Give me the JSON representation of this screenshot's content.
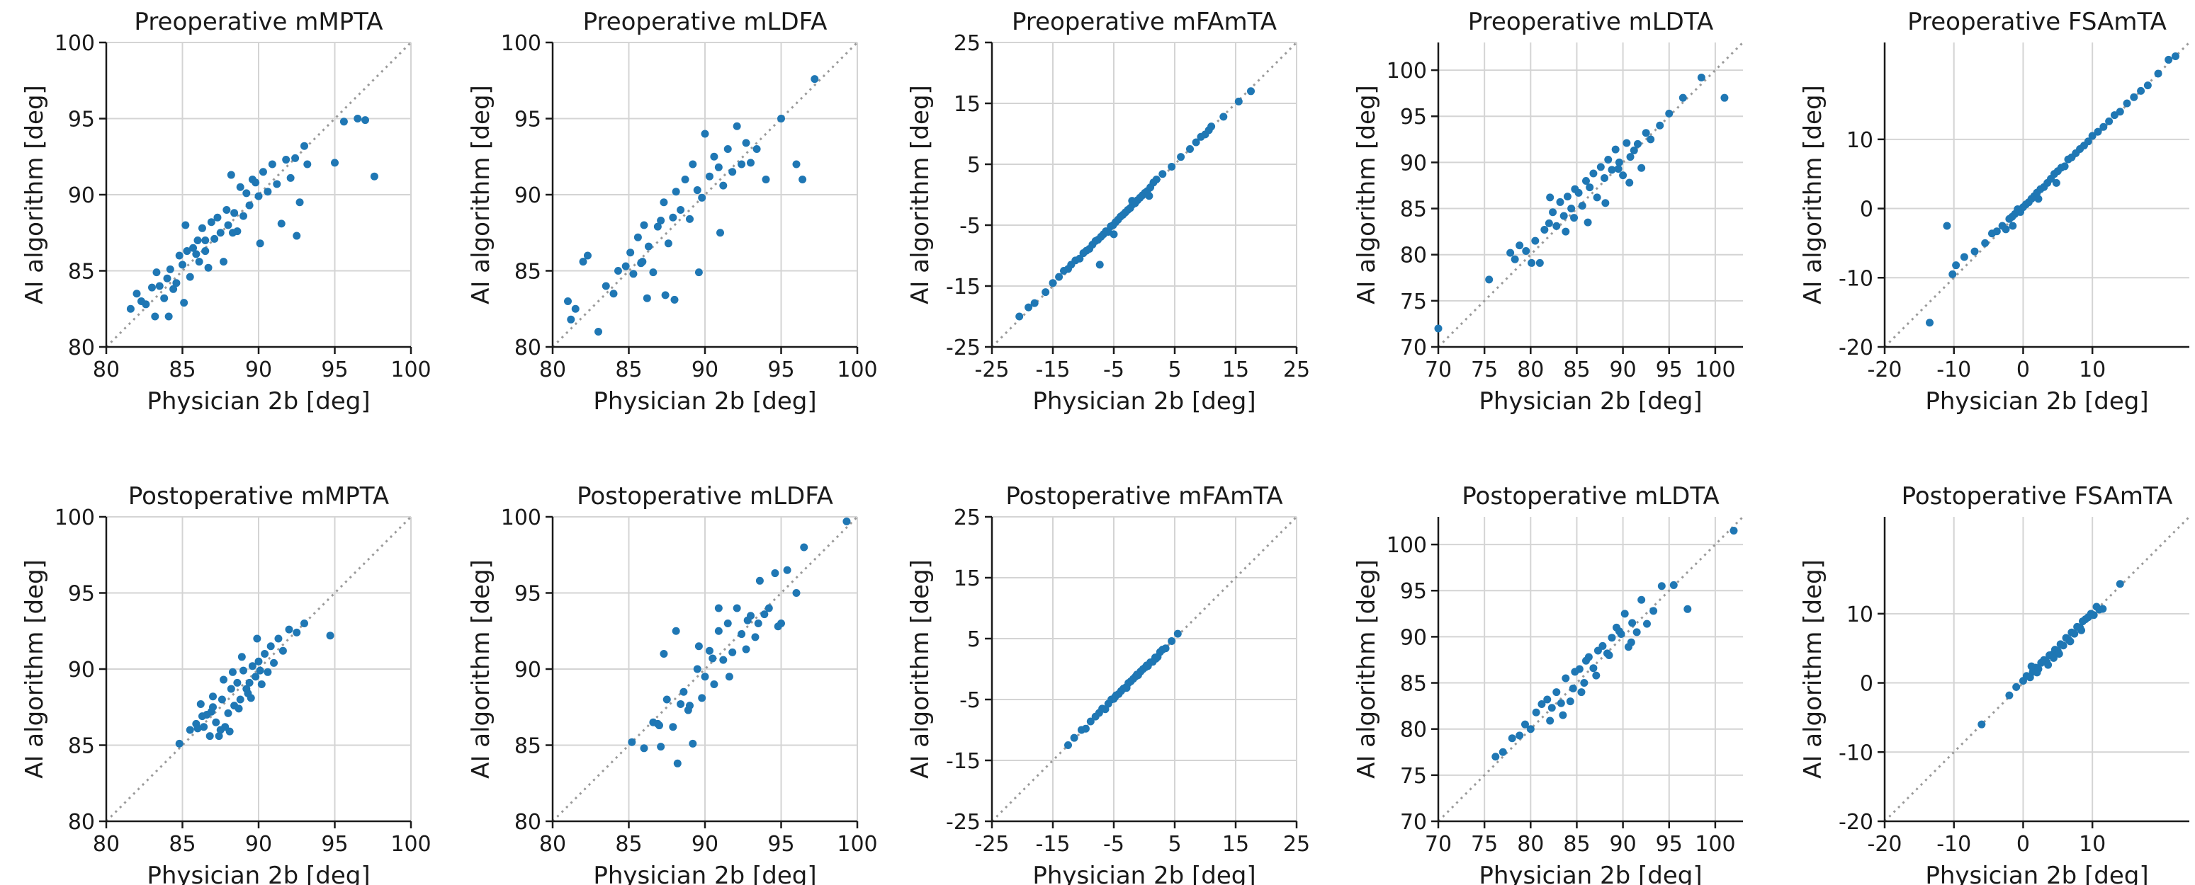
{
  "figure": {
    "x_axis_label": "Physician 2b [deg]",
    "y_axis_label": "AI algorithm [deg]",
    "marker_color": "#1f77b4",
    "reference_line": "identity (dotted)"
  },
  "chart_data": [
    {
      "type": "scatter",
      "title": "Preoperative mMPTA",
      "xlabel": "Physician 2b [deg]",
      "ylabel": "AI algorithm [deg]",
      "xlim": [
        80,
        100
      ],
      "ylim": [
        80,
        100
      ],
      "xticks": [
        80,
        85,
        90,
        95,
        100
      ],
      "yticks": [
        80,
        85,
        90,
        95,
        100
      ],
      "grid": true,
      "x": [
        81.6,
        82.0,
        82.3,
        82.6,
        83.0,
        83.2,
        83.5,
        83.8,
        84.0,
        84.2,
        84.4,
        84.6,
        84.8,
        85.0,
        85.1,
        85.3,
        85.5,
        85.7,
        85.9,
        86.0,
        86.1,
        86.3,
        86.5,
        86.7,
        86.9,
        87.1,
        87.3,
        87.5,
        87.7,
        87.9,
        88.0,
        88.2,
        88.4,
        88.6,
        88.8,
        89.0,
        89.2,
        89.4,
        89.6,
        89.8,
        90.0,
        90.3,
        90.6,
        90.9,
        91.2,
        91.5,
        91.8,
        92.1,
        92.4,
        92.7,
        93.0,
        93.2,
        95.0,
        95.6,
        96.5,
        97.0,
        97.6,
        85.2,
        86.5,
        90.1,
        92.5,
        88.3,
        84.1,
        83.3
      ],
      "y": [
        82.5,
        83.5,
        83.0,
        82.8,
        83.9,
        82.0,
        84.0,
        83.2,
        84.5,
        85.1,
        83.8,
        84.2,
        86.0,
        85.4,
        82.9,
        86.3,
        84.6,
        86.5,
        86.1,
        87.0,
        85.6,
        87.8,
        86.3,
        85.2,
        88.2,
        87.1,
        88.5,
        87.5,
        85.6,
        89.0,
        88.0,
        91.3,
        88.8,
        87.6,
        90.5,
        88.6,
        90.1,
        89.3,
        91.0,
        90.8,
        89.9,
        91.5,
        90.2,
        92.0,
        90.7,
        88.1,
        92.3,
        91.1,
        92.4,
        89.5,
        93.2,
        92.0,
        92.1,
        94.8,
        95.0,
        94.9,
        91.2,
        88.0,
        87.0,
        86.8,
        87.3,
        87.5,
        82.0,
        84.9
      ]
    },
    {
      "type": "scatter",
      "title": "Preoperative mLDFA",
      "xlabel": "Physician 2b [deg]",
      "ylabel": "AI algorithm [deg]",
      "xlim": [
        80,
        100
      ],
      "ylim": [
        80,
        100
      ],
      "xticks": [
        80,
        85,
        90,
        95,
        100
      ],
      "yticks": [
        80,
        85,
        90,
        95,
        100
      ],
      "grid": true,
      "x": [
        81.0,
        81.2,
        81.5,
        82.0,
        82.3,
        83.0,
        83.5,
        84.0,
        84.3,
        84.8,
        85.1,
        85.3,
        85.6,
        85.8,
        86.0,
        86.3,
        86.6,
        86.9,
        87.1,
        87.3,
        87.6,
        87.9,
        88.1,
        88.4,
        88.7,
        89.0,
        89.2,
        89.5,
        89.8,
        90.0,
        90.3,
        90.6,
        90.9,
        91.2,
        91.5,
        91.8,
        92.1,
        92.4,
        92.7,
        93.0,
        93.4,
        94.0,
        95.0,
        96.0,
        96.4,
        97.2,
        86.2,
        88.0,
        89.6,
        91.0,
        87.4,
        85.9
      ],
      "y": [
        83.0,
        81.8,
        82.5,
        85.6,
        86.0,
        81.0,
        84.0,
        83.5,
        85.0,
        85.3,
        86.2,
        84.8,
        87.2,
        85.5,
        88.0,
        86.6,
        84.9,
        87.9,
        88.3,
        89.5,
        86.8,
        88.5,
        90.2,
        89.0,
        91.0,
        88.4,
        92.0,
        90.3,
        89.8,
        94.0,
        91.2,
        92.5,
        91.8,
        90.6,
        93.0,
        91.5,
        94.5,
        92.0,
        93.4,
        92.1,
        93.0,
        91.0,
        95.0,
        92.0,
        91.0,
        97.6,
        83.2,
        83.1,
        84.9,
        87.5,
        83.4,
        85.6
      ]
    },
    {
      "type": "scatter",
      "title": "Preoperative mFAmTA",
      "xlabel": "Physician 2b [deg]",
      "ylabel": "AI algorithm [deg]",
      "xlim": [
        -25,
        25
      ],
      "ylim": [
        -25,
        25
      ],
      "xticks": [
        -25,
        -15,
        -5,
        5,
        15,
        25
      ],
      "yticks": [
        -25,
        -15,
        -5,
        5,
        15,
        25
      ],
      "grid": true,
      "x": [
        -20.5,
        -19.0,
        -18.0,
        -16.2,
        -15.0,
        -14.0,
        -13.2,
        -12.5,
        -12.0,
        -11.3,
        -10.6,
        -10.0,
        -9.5,
        -9.0,
        -8.5,
        -8.0,
        -7.6,
        -7.1,
        -6.7,
        -6.3,
        -5.9,
        -5.5,
        -5.1,
        -4.7,
        -4.3,
        -3.9,
        -3.5,
        -3.1,
        -2.7,
        -2.3,
        -1.9,
        -1.5,
        -1.1,
        -0.7,
        -0.3,
        0.1,
        0.5,
        1.0,
        1.5,
        2.0,
        3.0,
        4.5,
        6.0,
        7.5,
        8.5,
        9.3,
        10.0,
        10.6,
        11.0,
        13.0,
        15.5,
        17.5,
        -7.3,
        -5.0,
        -2.0,
        0.8
      ],
      "y": [
        -20.0,
        -18.5,
        -17.8,
        -16.0,
        -14.5,
        -13.5,
        -12.5,
        -12.2,
        -11.5,
        -10.8,
        -10.5,
        -9.6,
        -9.2,
        -8.9,
        -8.2,
        -7.6,
        -7.4,
        -6.9,
        -6.5,
        -6.0,
        -6.1,
        -5.2,
        -5.0,
        -4.5,
        -4.1,
        -3.6,
        -3.3,
        -2.9,
        -2.5,
        -2.2,
        -1.6,
        -1.4,
        -0.9,
        -0.5,
        -0.1,
        0.3,
        0.6,
        1.2,
        2.0,
        2.5,
        3.4,
        4.6,
        6.2,
        7.5,
        8.6,
        9.5,
        9.9,
        10.6,
        11.2,
        12.8,
        15.3,
        17.0,
        -11.5,
        -6.5,
        -1.0,
        -0.2
      ]
    },
    {
      "type": "scatter",
      "title": "Preoperative mLDTA",
      "xlabel": "Physician 2b [deg]",
      "ylabel": "AI algorithm [deg]",
      "xlim": [
        70,
        103
      ],
      "ylim": [
        70,
        103
      ],
      "xticks": [
        70,
        75,
        80,
        85,
        90,
        95,
        100
      ],
      "yticks": [
        70,
        75,
        80,
        85,
        90,
        95,
        100
      ],
      "grid": true,
      "x": [
        70.0,
        75.5,
        77.8,
        78.3,
        78.8,
        79.5,
        80.1,
        80.5,
        81.0,
        81.5,
        82.0,
        82.4,
        82.8,
        83.2,
        83.6,
        84.0,
        84.4,
        84.8,
        85.2,
        85.6,
        86.0,
        86.4,
        86.8,
        87.2,
        87.6,
        88.0,
        88.4,
        88.8,
        89.2,
        89.6,
        90.0,
        90.4,
        90.8,
        91.2,
        91.6,
        92.0,
        92.5,
        93.0,
        94.0,
        95.0,
        96.5,
        98.5,
        101.0,
        84.7,
        86.2,
        88.1,
        89.5,
        90.7,
        82.1,
        83.8
      ],
      "y": [
        72.0,
        77.3,
        80.2,
        79.5,
        81.0,
        80.4,
        79.1,
        81.5,
        79.1,
        82.7,
        83.4,
        84.6,
        83.1,
        85.7,
        84.2,
        86.3,
        85.0,
        87.1,
        86.7,
        85.3,
        88.0,
        87.3,
        88.8,
        86.2,
        89.5,
        88.3,
        90.3,
        89.2,
        91.4,
        90.0,
        88.6,
        92.1,
        90.6,
        91.3,
        92.0,
        89.4,
        93.2,
        92.5,
        94.0,
        95.3,
        97.0,
        99.2,
        97.0,
        84.0,
        83.5,
        85.6,
        89.3,
        87.8,
        86.2,
        82.5
      ]
    },
    {
      "type": "scatter",
      "title": "Preoperative FSAmTA",
      "xlabel": "Physician 2b [deg]",
      "ylabel": "AI algorithm [deg]",
      "xlim": [
        -20,
        24
      ],
      "ylim": [
        -20,
        24
      ],
      "xticks": [
        -20,
        -10,
        0,
        10
      ],
      "yticks": [
        -20,
        -10,
        0,
        10
      ],
      "grid": true,
      "x": [
        -13.5,
        -11.0,
        -10.2,
        -9.7,
        -8.5,
        -7.0,
        -5.5,
        -4.5,
        -3.8,
        -3.0,
        -2.5,
        -2.0,
        -1.6,
        -1.2,
        -0.8,
        -0.4,
        0.0,
        0.4,
        0.8,
        1.2,
        1.6,
        2.0,
        2.5,
        3.0,
        3.5,
        4.0,
        4.5,
        5.0,
        5.5,
        6.0,
        6.5,
        7.0,
        7.6,
        8.2,
        8.8,
        9.4,
        10.0,
        10.8,
        11.6,
        12.4,
        13.2,
        14.0,
        15.0,
        16.0,
        17.0,
        18.0,
        19.5,
        21.0,
        22.0,
        -1.5,
        2.2,
        4.8
      ],
      "y": [
        -16.5,
        -2.5,
        -9.5,
        -8.2,
        -7.0,
        -6.2,
        -5.0,
        -3.6,
        -3.3,
        -2.5,
        -3.0,
        -1.5,
        -1.2,
        -0.8,
        -0.1,
        -0.5,
        0.2,
        0.6,
        0.9,
        1.4,
        1.8,
        2.3,
        2.8,
        3.1,
        3.7,
        4.3,
        5.0,
        5.4,
        5.9,
        6.1,
        7.1,
        7.4,
        8.0,
        8.6,
        9.1,
        9.7,
        10.5,
        11.1,
        11.8,
        12.6,
        13.5,
        14.0,
        15.2,
        16.1,
        17.0,
        17.8,
        19.5,
        21.5,
        22.0,
        -2.5,
        1.4,
        3.7
      ]
    },
    {
      "type": "scatter",
      "title": "Postoperative mMPTA",
      "xlabel": "Physician 2b [deg]",
      "ylabel": "AI algorithm [deg]",
      "xlim": [
        80,
        100
      ],
      "ylim": [
        80,
        100
      ],
      "xticks": [
        80,
        85,
        90,
        95,
        100
      ],
      "yticks": [
        80,
        85,
        90,
        95,
        100
      ],
      "grid": true,
      "x": [
        84.8,
        85.5,
        85.9,
        86.2,
        86.4,
        86.6,
        86.8,
        87.0,
        87.2,
        87.4,
        87.6,
        87.8,
        88.0,
        88.2,
        88.4,
        88.6,
        88.8,
        89.0,
        89.2,
        89.4,
        89.6,
        89.8,
        90.0,
        90.2,
        90.4,
        90.6,
        90.8,
        91.0,
        91.3,
        91.6,
        92.0,
        92.5,
        93.0,
        94.7,
        86.3,
        86.9,
        87.5,
        88.1,
        88.7,
        89.3,
        89.9,
        87.7,
        88.3,
        86.0,
        87.0,
        88.9,
        90.1,
        89.5
      ],
      "y": [
        85.1,
        86.0,
        86.4,
        87.7,
        86.2,
        87.0,
        85.6,
        87.5,
        86.5,
        85.6,
        88.0,
        86.2,
        87.1,
        88.7,
        87.6,
        89.1,
        88.0,
        89.9,
        88.7,
        89.1,
        90.2,
        89.5,
        90.5,
        89.0,
        91.0,
        89.8,
        91.5,
        90.4,
        92.0,
        91.2,
        92.6,
        92.4,
        93.0,
        92.2,
        86.9,
        87.2,
        86.0,
        85.9,
        87.4,
        88.4,
        92.0,
        89.3,
        89.8,
        86.1,
        88.2,
        90.8,
        89.9,
        88.1
      ]
    },
    {
      "type": "scatter",
      "title": "Postoperative mLDFA",
      "xlabel": "Physician 2b [deg]",
      "ylabel": "AI algorithm [deg]",
      "xlim": [
        80,
        100
      ],
      "ylim": [
        80,
        100
      ],
      "xticks": [
        80,
        85,
        90,
        95,
        100
      ],
      "yticks": [
        80,
        85,
        90,
        95,
        100
      ],
      "grid": true,
      "x": [
        85.2,
        86.0,
        86.6,
        87.1,
        87.5,
        87.9,
        88.2,
        88.6,
        88.9,
        89.2,
        89.5,
        89.8,
        90.0,
        90.3,
        90.6,
        90.9,
        91.2,
        91.5,
        91.8,
        92.1,
        92.4,
        92.7,
        93.0,
        93.3,
        93.6,
        93.9,
        94.2,
        94.6,
        95.0,
        95.4,
        96.0,
        96.5,
        99.3,
        87.3,
        88.1,
        89.0,
        90.5,
        91.6,
        92.8,
        88.4,
        86.9,
        89.6,
        90.9,
        93.5,
        94.8,
        87.0
      ],
      "y": [
        85.2,
        84.8,
        86.5,
        84.9,
        88.0,
        86.2,
        83.8,
        88.5,
        87.3,
        85.1,
        90.0,
        88.1,
        89.5,
        91.2,
        89.0,
        92.5,
        90.6,
        93.0,
        91.1,
        94.0,
        92.3,
        91.3,
        93.5,
        92.1,
        95.8,
        93.6,
        94.0,
        96.3,
        93.0,
        96.5,
        95.0,
        98.0,
        99.7,
        91.0,
        92.5,
        87.6,
        90.7,
        89.5,
        93.2,
        87.7,
        86.4,
        91.5,
        94.0,
        93.0,
        92.8,
        86.3
      ]
    },
    {
      "type": "scatter",
      "title": "Postoperative mFAmTA",
      "xlabel": "Physician 2b [deg]",
      "ylabel": "AI algorithm [deg]",
      "xlim": [
        -25,
        25
      ],
      "ylim": [
        -25,
        25
      ],
      "xticks": [
        -25,
        -15,
        -5,
        5,
        15,
        25
      ],
      "yticks": [
        -25,
        -15,
        -5,
        5,
        15,
        25
      ],
      "grid": true,
      "x": [
        -12.5,
        -11.5,
        -10.3,
        -9.6,
        -8.8,
        -8.0,
        -7.4,
        -6.9,
        -6.4,
        -5.9,
        -5.4,
        -5.0,
        -4.6,
        -4.2,
        -3.8,
        -3.4,
        -3.0,
        -2.6,
        -2.2,
        -1.8,
        -1.4,
        -1.0,
        -0.6,
        -0.2,
        0.2,
        0.6,
        1.0,
        1.4,
        1.8,
        2.2,
        2.6,
        3.0,
        3.5,
        4.5,
        5.5,
        -4.8,
        -2.9,
        -1.2,
        0.4,
        1.9
      ],
      "y": [
        -12.5,
        -11.3,
        -10.0,
        -9.8,
        -8.6,
        -7.8,
        -7.2,
        -6.5,
        -6.6,
        -5.7,
        -5.0,
        -4.9,
        -4.3,
        -4.1,
        -3.6,
        -3.2,
        -3.0,
        -2.3,
        -2.0,
        -1.6,
        -1.2,
        -1.0,
        -0.4,
        0.0,
        0.3,
        0.5,
        1.1,
        1.2,
        1.9,
        2.0,
        2.8,
        3.2,
        3.4,
        4.6,
        5.8,
        -4.6,
        -3.1,
        -0.9,
        0.6,
        1.7
      ]
    },
    {
      "type": "scatter",
      "title": "Postoperative mLDTA",
      "xlabel": "Physician 2b [deg]",
      "ylabel": "AI algorithm [deg]",
      "xlim": [
        70,
        103
      ],
      "ylim": [
        70,
        103
      ],
      "xticks": [
        70,
        75,
        80,
        85,
        90,
        95,
        100
      ],
      "yticks": [
        70,
        75,
        80,
        85,
        90,
        95,
        100
      ],
      "grid": true,
      "x": [
        76.2,
        77.0,
        78.0,
        78.8,
        79.4,
        80.0,
        80.6,
        81.2,
        81.8,
        82.3,
        82.8,
        83.3,
        83.8,
        84.3,
        84.8,
        85.3,
        85.8,
        86.3,
        86.8,
        87.3,
        87.8,
        88.3,
        88.8,
        89.3,
        89.8,
        90.2,
        90.6,
        91.0,
        91.5,
        92.0,
        92.6,
        93.3,
        94.2,
        95.5,
        97.0,
        102.0,
        83.5,
        84.6,
        86.0,
        87.1,
        88.5,
        89.6,
        90.9,
        85.5,
        82.1
      ],
      "y": [
        77.0,
        77.5,
        79.0,
        79.3,
        80.5,
        80.0,
        81.8,
        82.7,
        83.2,
        82.3,
        84.0,
        82.8,
        85.5,
        83.0,
        86.2,
        86.5,
        85.0,
        87.8,
        86.6,
        88.5,
        89.0,
        88.2,
        89.9,
        91.0,
        90.3,
        92.5,
        88.9,
        91.5,
        90.5,
        94.0,
        91.4,
        92.8,
        95.5,
        95.6,
        93.0,
        101.5,
        81.5,
        84.4,
        87.4,
        85.8,
        88.0,
        90.6,
        89.4,
        84.0,
        80.9
      ]
    },
    {
      "type": "scatter",
      "title": "Postoperative FSAmTA",
      "xlabel": "Physician 2b [deg]",
      "ylabel": "AI algorithm [deg]",
      "xlim": [
        -20,
        24
      ],
      "ylim": [
        -20,
        24
      ],
      "xticks": [
        -20,
        -10,
        0,
        10
      ],
      "yticks": [
        -20,
        -10,
        0,
        10
      ],
      "grid": true,
      "x": [
        -6.0,
        -2.0,
        -1.0,
        0.0,
        0.5,
        1.0,
        1.4,
        1.8,
        2.2,
        2.6,
        3.0,
        3.4,
        3.8,
        4.2,
        4.6,
        5.0,
        5.4,
        5.8,
        6.2,
        6.6,
        7.0,
        7.4,
        7.8,
        8.2,
        8.6,
        9.0,
        9.4,
        9.8,
        10.2,
        10.6,
        11.0,
        11.5,
        14.0,
        2.0,
        3.6,
        5.2,
        6.8,
        8.4,
        1.2,
        4.4
      ],
      "y": [
        -6.0,
        -1.8,
        -0.6,
        0.3,
        1.0,
        0.8,
        1.6,
        2.2,
        2.0,
        2.9,
        3.3,
        3.0,
        4.0,
        4.1,
        4.8,
        4.6,
        5.6,
        5.4,
        6.5,
        6.2,
        7.3,
        7.1,
        8.1,
        8.0,
        8.9,
        9.2,
        9.5,
        10.0,
        9.8,
        11.0,
        10.6,
        10.7,
        14.3,
        1.5,
        2.6,
        4.2,
        6.0,
        7.6,
        2.4,
        3.6
      ]
    }
  ]
}
